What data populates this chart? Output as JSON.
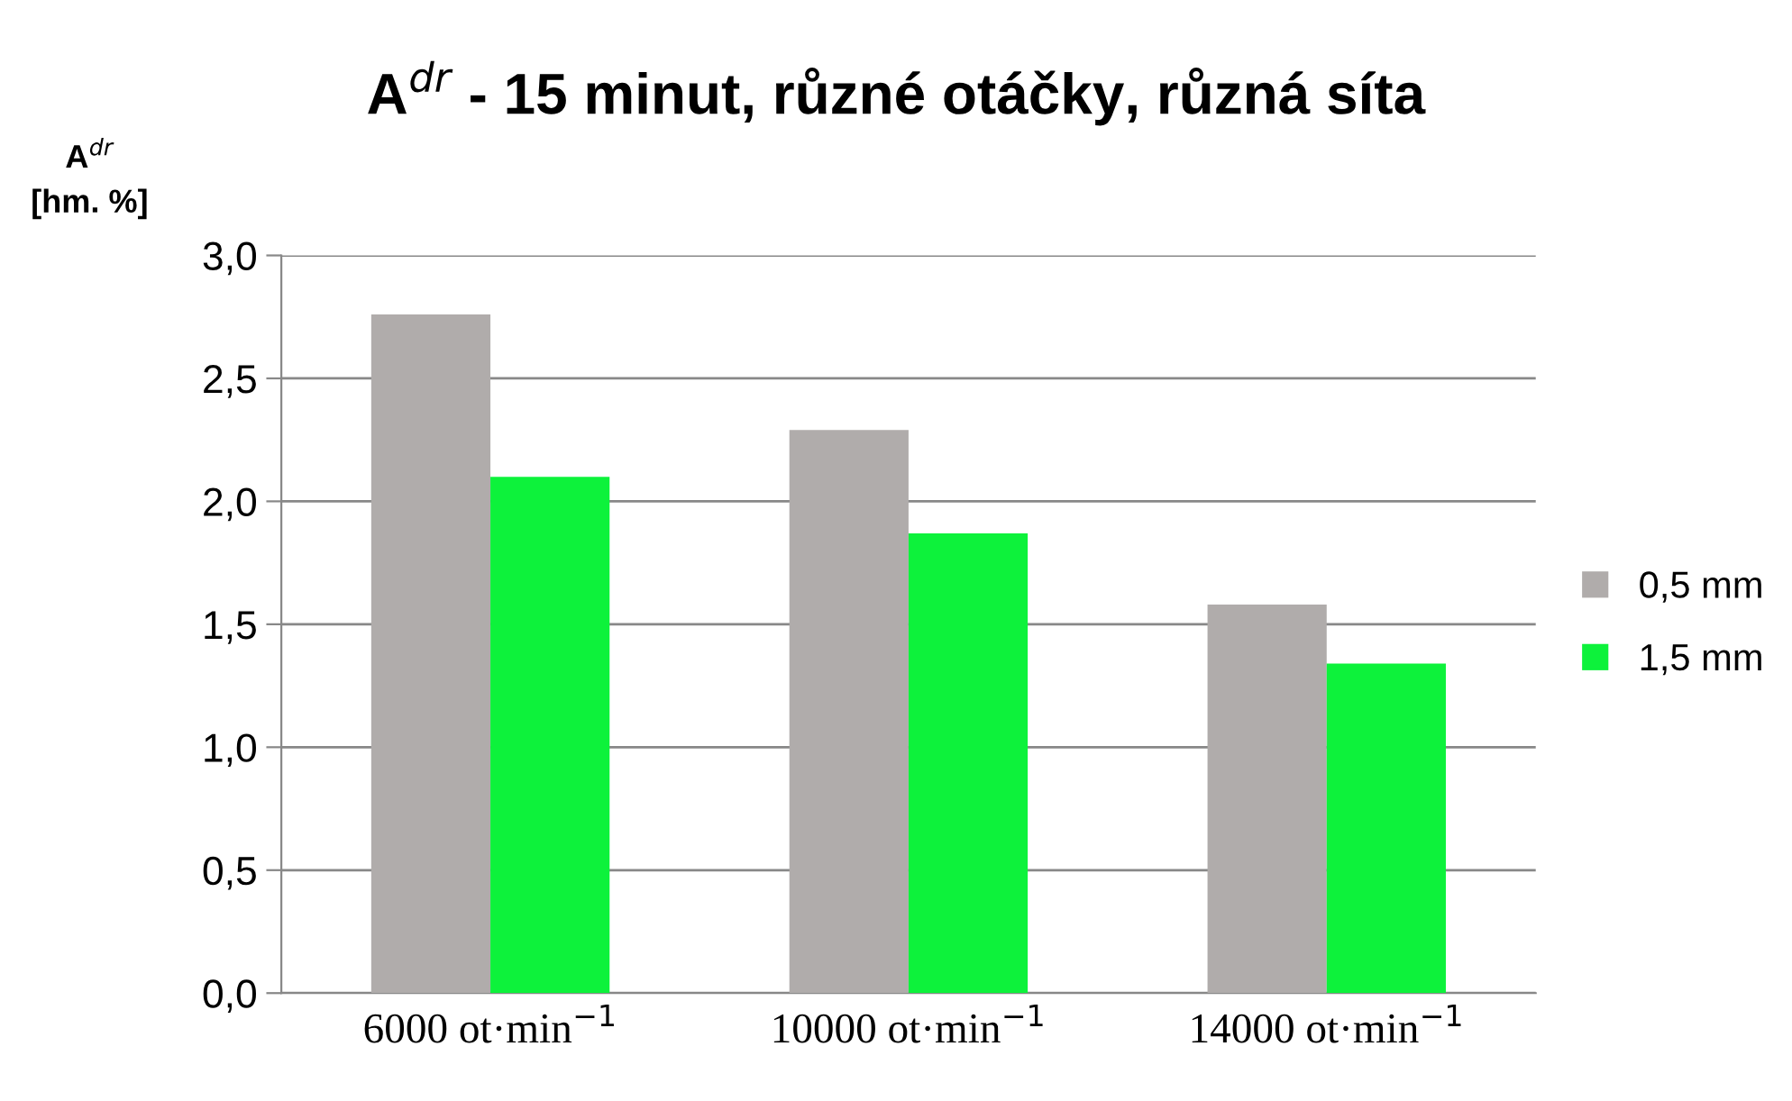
{
  "chart_data": {
    "type": "bar",
    "title": "A$^{dr}$ - 15 minut, různé otáčky, různá síta",
    "ylabel": "A$^{dr}$\n[hm. %]",
    "categories": [
      "6000 ot·min$^{−1}$",
      "10000 ot·min$^{−1}$",
      "14000 ot·min$^{−1}$"
    ],
    "series": [
      {
        "name": "0,5 mm",
        "color": "#b0acab",
        "values": [
          2.76,
          2.29,
          1.58
        ]
      },
      {
        "name": "1,5 mm",
        "color": "#0df23b",
        "values": [
          2.1,
          1.87,
          1.34
        ]
      }
    ],
    "ylim": [
      0,
      3
    ],
    "yticks": [
      {
        "value": 0,
        "label": "0,0"
      },
      {
        "value": 0.5,
        "label": "0,5"
      },
      {
        "value": 1,
        "label": "1,0"
      },
      {
        "value": 1.5,
        "label": "1,5"
      },
      {
        "value": 2,
        "label": "2,0"
      },
      {
        "value": 2.5,
        "label": "2,5"
      },
      {
        "value": 3,
        "label": "3,0"
      }
    ],
    "grid": "y",
    "legend": "right"
  }
}
